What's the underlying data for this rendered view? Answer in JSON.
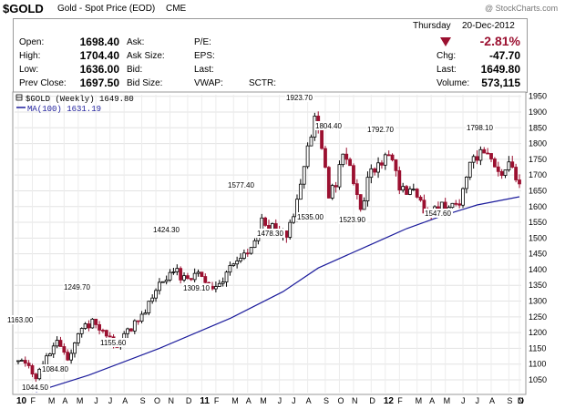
{
  "header": {
    "symbol": "$GOLD",
    "description": "Gold - Spot Price (EOD)",
    "exchange": "CME",
    "watermark": "@ StockCharts.com"
  },
  "quote": {
    "day": "Thursday",
    "date": "20-Dec-2012",
    "pct_change": "-2.81%",
    "labels": {
      "open": "Open:",
      "high": "High:",
      "low": "Low:",
      "prev_close": "Prev Close:",
      "ask": "Ask:",
      "ask_size": "Ask Size:",
      "bid": "Bid:",
      "bid_size": "Bid Size:",
      "pe": "P/E:",
      "eps": "EPS:",
      "last": "Last:",
      "vwap": "VWAP:",
      "sctr": "SCTR:",
      "chg": "Chg:",
      "last_r": "Last:",
      "volume": "Volume:"
    },
    "values": {
      "open": "1698.40",
      "high": "1704.40",
      "low": "1636.00",
      "prev_close": "1697.50",
      "chg": "-47.70",
      "last": "1649.80",
      "volume": "573,115"
    },
    "colors": {
      "down": "#9b1030",
      "up": "#000000"
    }
  },
  "legend": {
    "price": "$GOLD (Weekly) 1649.80",
    "ma": "MA(100) 1631.19"
  },
  "chart_data": {
    "type": "candlestick",
    "interval": "weekly",
    "ylim": [
      1000,
      1950
    ],
    "y_scale": "log",
    "y_ticks": [
      1050,
      1100,
      1150,
      1200,
      1250,
      1300,
      1350,
      1400,
      1450,
      1500,
      1550,
      1600,
      1650,
      1700,
      1750,
      1800,
      1850,
      1900,
      1950
    ],
    "x_axis_labels": [
      "10",
      "F",
      "M",
      "A",
      "M",
      "J",
      "J",
      "A",
      "S",
      "O",
      "N",
      "D",
      "11",
      "F",
      "M",
      "A",
      "M",
      "J",
      "J",
      "A",
      "S",
      "O",
      "N",
      "D",
      "12",
      "F",
      "M",
      "A",
      "M",
      "J",
      "J",
      "A",
      "S",
      "O",
      "N",
      "D"
    ],
    "price_anchors": [
      {
        "week": 0,
        "value": 1110
      },
      {
        "week": 3,
        "value": 1095
      },
      {
        "week": 5,
        "value": 1065
      },
      {
        "week": 7,
        "value": 1110
      },
      {
        "week": 11,
        "value": 1163
      },
      {
        "week": 14,
        "value": 1120
      },
      {
        "week": 17,
        "value": 1190
      },
      {
        "week": 21,
        "value": 1240
      },
      {
        "week": 25,
        "value": 1185
      },
      {
        "week": 28,
        "value": 1160
      },
      {
        "week": 31,
        "value": 1200
      },
      {
        "week": 36,
        "value": 1275
      },
      {
        "week": 40,
        "value": 1350
      },
      {
        "week": 44,
        "value": 1405
      },
      {
        "week": 47,
        "value": 1370
      },
      {
        "week": 50,
        "value": 1390
      },
      {
        "week": 53,
        "value": 1360
      },
      {
        "week": 56,
        "value": 1335
      },
      {
        "week": 60,
        "value": 1400
      },
      {
        "week": 64,
        "value": 1440
      },
      {
        "week": 67,
        "value": 1500
      },
      {
        "week": 69,
        "value": 1555
      },
      {
        "week": 73,
        "value": 1530
      },
      {
        "week": 76,
        "value": 1500
      },
      {
        "week": 79,
        "value": 1620
      },
      {
        "week": 82,
        "value": 1800
      },
      {
        "week": 84,
        "value": 1880
      },
      {
        "week": 86,
        "value": 1800
      },
      {
        "week": 88,
        "value": 1630
      },
      {
        "week": 90,
        "value": 1680
      },
      {
        "week": 92,
        "value": 1760
      },
      {
        "week": 94,
        "value": 1720
      },
      {
        "week": 97,
        "value": 1590
      },
      {
        "week": 100,
        "value": 1720
      },
      {
        "week": 104,
        "value": 1750
      },
      {
        "week": 106,
        "value": 1740
      },
      {
        "week": 108,
        "value": 1660
      },
      {
        "week": 112,
        "value": 1640
      },
      {
        "week": 116,
        "value": 1580
      },
      {
        "week": 119,
        "value": 1600
      },
      {
        "week": 122,
        "value": 1590
      },
      {
        "week": 125,
        "value": 1620
      },
      {
        "week": 128,
        "value": 1730
      },
      {
        "week": 131,
        "value": 1780
      },
      {
        "week": 133,
        "value": 1770
      },
      {
        "week": 135,
        "value": 1720
      },
      {
        "week": 137,
        "value": 1710
      },
      {
        "week": 139,
        "value": 1740
      },
      {
        "week": 141,
        "value": 1700
      },
      {
        "week": 142,
        "value": 1655
      }
    ],
    "ma_anchors": [
      {
        "week": 5,
        "value": 1012
      },
      {
        "week": 20,
        "value": 1065
      },
      {
        "week": 40,
        "value": 1150
      },
      {
        "week": 60,
        "value": 1245
      },
      {
        "week": 75,
        "value": 1330
      },
      {
        "week": 85,
        "value": 1405
      },
      {
        "week": 100,
        "value": 1480
      },
      {
        "week": 110,
        "value": 1530
      },
      {
        "week": 120,
        "value": 1570
      },
      {
        "week": 130,
        "value": 1605
      },
      {
        "week": 142,
        "value": 1631
      }
    ],
    "annotations": [
      {
        "text": "1163.00",
        "value": 1163.0
      },
      {
        "text": "1084.80",
        "value": 1084.8
      },
      {
        "text": "1044.50",
        "value": 1044.5
      },
      {
        "text": "1249.70",
        "value": 1249.7
      },
      {
        "text": "1155.60",
        "value": 1155.6
      },
      {
        "text": "1424.30",
        "value": 1424.3
      },
      {
        "text": "1309.10",
        "value": 1309.1
      },
      {
        "text": "1577.40",
        "value": 1577.4
      },
      {
        "text": "1478.30",
        "value": 1478.3
      },
      {
        "text": "1923.70",
        "value": 1923.7
      },
      {
        "text": "1535.00",
        "value": 1535.0
      },
      {
        "text": "1804.40",
        "value": 1804.4
      },
      {
        "text": "1523.90",
        "value": 1523.9
      },
      {
        "text": "1792.70",
        "value": 1792.7
      },
      {
        "text": "1547.60",
        "value": 1547.6
      },
      {
        "text": "1798.10",
        "value": 1798.1
      }
    ]
  }
}
